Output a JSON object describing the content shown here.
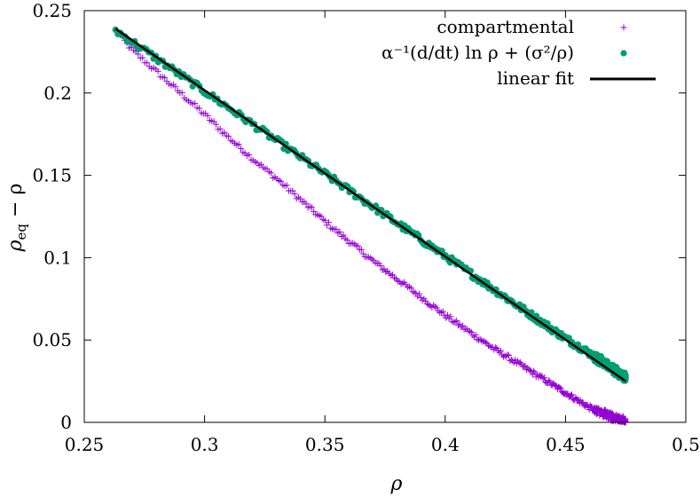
{
  "chart_data": {
    "type": "scatter",
    "xlabel": "ρ",
    "ylabel_main": "ρ",
    "ylabel_sub": "eq",
    "ylabel_rest": " − ρ",
    "xlim": [
      0.25,
      0.5
    ],
    "ylim": [
      0,
      0.25
    ],
    "x_ticks": [
      "0.25",
      "0.3",
      "0.35",
      "0.4",
      "0.45",
      "0.5"
    ],
    "y_ticks": [
      "0",
      "0.05",
      "0.1",
      "0.15",
      "0.2",
      "0.25"
    ],
    "grid": false,
    "legend_position": "top-right",
    "legend": {
      "compartmental": "compartmental",
      "alpha_expr": "α⁻¹(d/dt) ln ρ + (σ²/ρ)",
      "linear_fit": "linear fit"
    },
    "colors": {
      "compartmental": "#9400d3",
      "alpha_expr": "#009e73",
      "linear_fit": "#000000"
    },
    "series": [
      {
        "name": "compartmental",
        "marker": "plus",
        "x_range": [
          0.263,
          0.475
        ],
        "points": [
          [
            0.263,
            0.238
          ],
          [
            0.27,
            0.226
          ],
          [
            0.28,
            0.213
          ],
          [
            0.29,
            0.2
          ],
          [
            0.3,
            0.187
          ],
          [
            0.31,
            0.173
          ],
          [
            0.32,
            0.16
          ],
          [
            0.33,
            0.148
          ],
          [
            0.34,
            0.135
          ],
          [
            0.35,
            0.122
          ],
          [
            0.36,
            0.11
          ],
          [
            0.37,
            0.098
          ],
          [
            0.38,
            0.087
          ],
          [
            0.39,
            0.076
          ],
          [
            0.4,
            0.065
          ],
          [
            0.41,
            0.055
          ],
          [
            0.42,
            0.045
          ],
          [
            0.43,
            0.036
          ],
          [
            0.44,
            0.027
          ],
          [
            0.45,
            0.018
          ],
          [
            0.46,
            0.009
          ],
          [
            0.47,
            0.003
          ],
          [
            0.475,
            0.001
          ]
        ]
      },
      {
        "name": "α⁻¹(d/dt) ln ρ + (σ²/ρ)",
        "marker": "filled-circle",
        "x_range": [
          0.263,
          0.475
        ],
        "points": [
          [
            0.263,
            0.238
          ],
          [
            0.27,
            0.231
          ],
          [
            0.28,
            0.221
          ],
          [
            0.29,
            0.211
          ],
          [
            0.3,
            0.201
          ],
          [
            0.31,
            0.191
          ],
          [
            0.32,
            0.181
          ],
          [
            0.33,
            0.171
          ],
          [
            0.34,
            0.161
          ],
          [
            0.35,
            0.151
          ],
          [
            0.36,
            0.141
          ],
          [
            0.37,
            0.131
          ],
          [
            0.38,
            0.121
          ],
          [
            0.39,
            0.111
          ],
          [
            0.4,
            0.101
          ],
          [
            0.41,
            0.091
          ],
          [
            0.42,
            0.081
          ],
          [
            0.43,
            0.071
          ],
          [
            0.44,
            0.061
          ],
          [
            0.45,
            0.051
          ],
          [
            0.46,
            0.042
          ],
          [
            0.47,
            0.032
          ],
          [
            0.475,
            0.027
          ]
        ]
      },
      {
        "name": "linear fit",
        "style": "line",
        "points": [
          [
            0.263,
            0.239
          ],
          [
            0.475,
            0.025
          ]
        ]
      }
    ]
  }
}
